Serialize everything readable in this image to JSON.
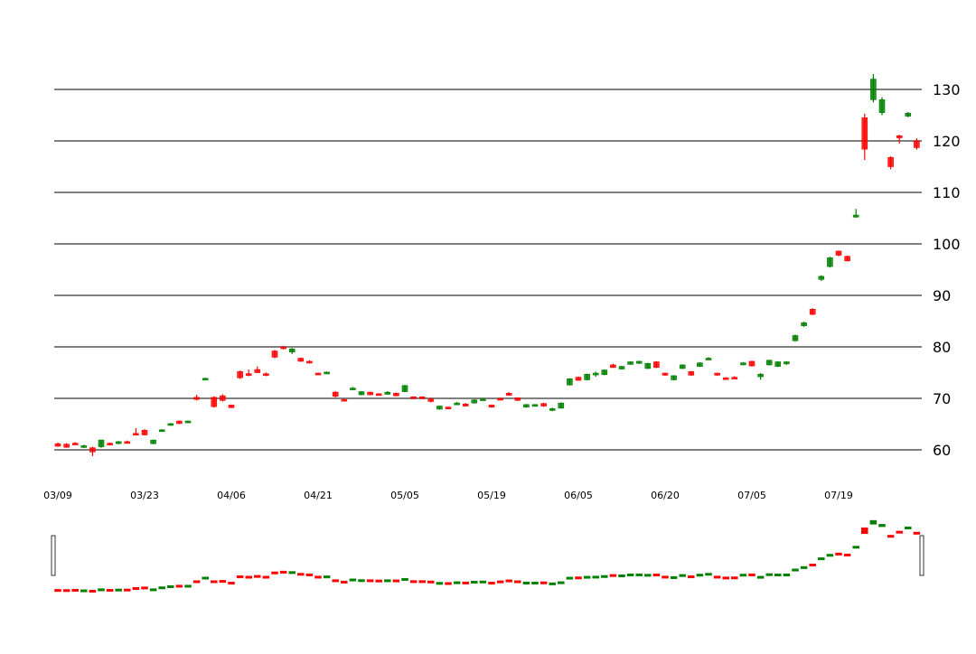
{
  "colors": {
    "up": "#008000",
    "down": "#ff0000",
    "grid": "#808080",
    "text": "#000000"
  },
  "chart_data": {
    "type": "candlestick",
    "grid": true,
    "y_axis_position": "right",
    "ylim": [
      55,
      135
    ],
    "yticks": [
      "60",
      "70",
      "80",
      "90",
      "100",
      "110",
      "120",
      "130"
    ],
    "xtick_labels": [
      {
        "label": "03/09",
        "index": 0
      },
      {
        "label": "03/23",
        "index": 10
      },
      {
        "label": "04/06",
        "index": 20
      },
      {
        "label": "04/21",
        "index": 30
      },
      {
        "label": "05/05",
        "index": 40
      },
      {
        "label": "05/19",
        "index": 50
      },
      {
        "label": "06/05",
        "index": 60
      },
      {
        "label": "06/20",
        "index": 70
      },
      {
        "label": "07/05",
        "index": 80
      },
      {
        "label": "07/19",
        "index": 90
      }
    ],
    "ohlc": [
      [
        61.2,
        61.4,
        60.6,
        60.7
      ],
      [
        61.1,
        61.3,
        60.4,
        60.5
      ],
      [
        61.3,
        61.5,
        61.0,
        61.1
      ],
      [
        60.6,
        61.0,
        60.4,
        60.8
      ],
      [
        60.4,
        60.6,
        58.8,
        59.6
      ],
      [
        60.6,
        62.0,
        60.4,
        61.9
      ],
      [
        61.3,
        61.4,
        60.9,
        61.0
      ],
      [
        61.2,
        61.7,
        61.1,
        61.6
      ],
      [
        61.6,
        61.8,
        61.3,
        61.4
      ],
      [
        63.2,
        64.2,
        62.8,
        62.9
      ],
      [
        63.8,
        64.0,
        62.8,
        62.9
      ],
      [
        61.2,
        62.0,
        61.1,
        61.9
      ],
      [
        63.6,
        64.0,
        63.5,
        63.9
      ],
      [
        64.8,
        65.2,
        64.7,
        65.1
      ],
      [
        65.6,
        65.7,
        65.0,
        65.1
      ],
      [
        65.4,
        65.7,
        65.3,
        65.6
      ],
      [
        70.2,
        70.7,
        69.6,
        69.8
      ],
      [
        73.6,
        74.0,
        73.5,
        73.9
      ],
      [
        70.2,
        70.4,
        68.2,
        68.4
      ],
      [
        70.5,
        70.8,
        69.4,
        69.6
      ],
      [
        68.7,
        68.8,
        68.1,
        68.2
      ],
      [
        75.2,
        75.4,
        73.8,
        74.0
      ],
      [
        74.8,
        75.6,
        74.3,
        74.5
      ],
      [
        75.6,
        76.2,
        74.9,
        75.0
      ],
      [
        74.8,
        75.0,
        74.3,
        74.5
      ],
      [
        79.2,
        79.4,
        77.8,
        78.0
      ],
      [
        80.0,
        80.2,
        79.5,
        79.7
      ],
      [
        79.0,
        79.8,
        78.6,
        79.6
      ],
      [
        77.8,
        77.9,
        77.1,
        77.2
      ],
      [
        77.2,
        77.4,
        76.8,
        76.9
      ],
      [
        74.9,
        75.0,
        74.6,
        74.7
      ],
      [
        74.8,
        75.2,
        74.7,
        75.1
      ],
      [
        71.2,
        71.4,
        70.2,
        70.4
      ],
      [
        69.8,
        69.9,
        69.4,
        69.5
      ],
      [
        71.7,
        72.2,
        71.6,
        72.0
      ],
      [
        70.7,
        71.4,
        70.6,
        71.3
      ],
      [
        71.2,
        71.3,
        70.6,
        70.7
      ],
      [
        70.9,
        71.0,
        70.7,
        70.8
      ],
      [
        70.8,
        71.4,
        70.7,
        71.2
      ],
      [
        71.0,
        71.1,
        70.4,
        70.5
      ],
      [
        71.3,
        72.6,
        71.2,
        72.5
      ],
      [
        70.3,
        70.4,
        69.9,
        70.0
      ],
      [
        70.3,
        70.4,
        70.1,
        70.2
      ],
      [
        69.9,
        70.1,
        69.2,
        69.4
      ],
      [
        67.9,
        68.6,
        67.8,
        68.5
      ],
      [
        68.3,
        68.4,
        67.9,
        68.0
      ],
      [
        69.0,
        69.3,
        68.8,
        69.1
      ],
      [
        68.9,
        69.1,
        68.4,
        68.5
      ],
      [
        69.1,
        69.8,
        69.0,
        69.7
      ],
      [
        69.8,
        70.0,
        69.6,
        69.9
      ],
      [
        68.7,
        68.8,
        68.2,
        68.3
      ],
      [
        70.0,
        70.1,
        69.8,
        69.9
      ],
      [
        71.0,
        71.2,
        70.5,
        70.6
      ],
      [
        70.1,
        70.2,
        69.5,
        69.6
      ],
      [
        68.3,
        68.9,
        68.2,
        68.8
      ],
      [
        68.5,
        68.9,
        68.4,
        68.8
      ],
      [
        69.0,
        69.1,
        68.4,
        68.5
      ],
      [
        67.7,
        68.2,
        67.5,
        68.0
      ],
      [
        68.1,
        69.2,
        68.0,
        69.1
      ],
      [
        72.6,
        73.9,
        72.5,
        73.8
      ],
      [
        74.1,
        74.2,
        73.4,
        73.5
      ],
      [
        73.6,
        74.8,
        73.5,
        74.7
      ],
      [
        74.7,
        75.2,
        74.2,
        74.9
      ],
      [
        74.6,
        75.6,
        74.5,
        75.5
      ],
      [
        76.5,
        76.7,
        75.9,
        76.0
      ],
      [
        75.7,
        76.3,
        75.6,
        76.2
      ],
      [
        76.6,
        77.2,
        76.5,
        77.1
      ],
      [
        76.8,
        77.3,
        76.7,
        77.2
      ],
      [
        75.8,
        76.9,
        75.7,
        76.8
      ],
      [
        77.1,
        77.2,
        75.9,
        76.0
      ],
      [
        74.9,
        75.0,
        74.4,
        74.5
      ],
      [
        73.6,
        74.5,
        73.5,
        74.4
      ],
      [
        75.8,
        76.6,
        75.7,
        76.5
      ],
      [
        75.2,
        75.3,
        74.4,
        74.5
      ],
      [
        76.2,
        77.0,
        76.1,
        76.9
      ],
      [
        77.6,
        78.0,
        77.5,
        77.8
      ],
      [
        74.9,
        75.0,
        74.4,
        74.5
      ],
      [
        74.0,
        74.1,
        73.8,
        73.9
      ],
      [
        74.1,
        74.3,
        73.9,
        74.0
      ],
      [
        76.5,
        77.0,
        76.4,
        76.9
      ],
      [
        77.2,
        77.3,
        76.2,
        76.3
      ],
      [
        74.2,
        74.9,
        73.6,
        74.7
      ],
      [
        76.5,
        77.5,
        76.4,
        77.4
      ],
      [
        76.2,
        77.2,
        76.1,
        77.1
      ],
      [
        76.7,
        77.2,
        76.5,
        77.1
      ],
      [
        81.2,
        82.4,
        81.0,
        82.2
      ],
      [
        84.1,
        84.9,
        83.9,
        84.7
      ],
      [
        87.3,
        87.5,
        86.2,
        86.3
      ],
      [
        93.1,
        93.9,
        92.8,
        93.7
      ],
      [
        95.6,
        97.5,
        95.4,
        97.3
      ],
      [
        98.6,
        98.7,
        97.6,
        97.8
      ],
      [
        97.6,
        97.7,
        96.6,
        96.7
      ],
      [
        105.2,
        106.8,
        105.1,
        105.6
      ],
      [
        124.5,
        125.3,
        116.3,
        118.4
      ],
      [
        128.0,
        133.0,
        127.5,
        132.0
      ],
      [
        125.5,
        128.5,
        125.0,
        128.0
      ],
      [
        116.8,
        117.0,
        114.5,
        115.0
      ],
      [
        121.0,
        121.2,
        119.5,
        120.6
      ],
      [
        124.8,
        125.6,
        124.6,
        125.4
      ],
      [
        120.0,
        120.5,
        118.3,
        118.7
      ]
    ]
  }
}
